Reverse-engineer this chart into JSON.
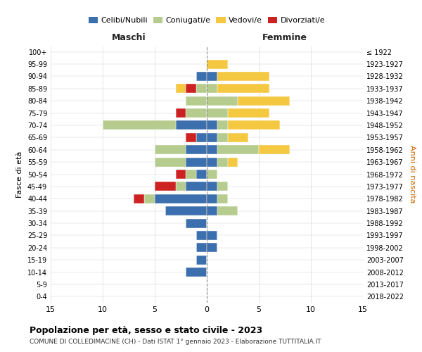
{
  "age_groups": [
    "0-4",
    "5-9",
    "10-14",
    "15-19",
    "20-24",
    "25-29",
    "30-34",
    "35-39",
    "40-44",
    "45-49",
    "50-54",
    "55-59",
    "60-64",
    "65-69",
    "70-74",
    "75-79",
    "80-84",
    "85-89",
    "90-94",
    "95-99",
    "100+"
  ],
  "birth_years": [
    "2018-2022",
    "2013-2017",
    "2008-2012",
    "2003-2007",
    "1998-2002",
    "1993-1997",
    "1988-1992",
    "1983-1987",
    "1978-1982",
    "1973-1977",
    "1968-1972",
    "1963-1967",
    "1958-1962",
    "1953-1957",
    "1948-1952",
    "1943-1947",
    "1938-1942",
    "1933-1937",
    "1928-1932",
    "1923-1927",
    "≤ 1922"
  ],
  "male": {
    "celibi": [
      0,
      0,
      2,
      1,
      1,
      1,
      2,
      4,
      5,
      2,
      1,
      2,
      2,
      1,
      3,
      0,
      0,
      0,
      1,
      0,
      0
    ],
    "coniugati": [
      0,
      0,
      0,
      0,
      0,
      0,
      0,
      0,
      1,
      1,
      1,
      3,
      3,
      0,
      7,
      2,
      2,
      1,
      0,
      0,
      0
    ],
    "vedovi": [
      0,
      0,
      0,
      0,
      0,
      0,
      0,
      0,
      0,
      0,
      0,
      0,
      0,
      0,
      0,
      0,
      0,
      1,
      0,
      0,
      0
    ],
    "divorziati": [
      0,
      0,
      0,
      0,
      0,
      0,
      0,
      0,
      1,
      2,
      1,
      0,
      0,
      1,
      0,
      1,
      0,
      1,
      0,
      0,
      0
    ]
  },
  "female": {
    "nubili": [
      0,
      0,
      0,
      0,
      1,
      1,
      0,
      1,
      1,
      1,
      0,
      1,
      1,
      1,
      1,
      0,
      0,
      0,
      1,
      0,
      0
    ],
    "coniugate": [
      0,
      0,
      0,
      0,
      0,
      0,
      0,
      2,
      1,
      1,
      1,
      1,
      4,
      1,
      1,
      2,
      3,
      1,
      0,
      0,
      0
    ],
    "vedove": [
      0,
      0,
      0,
      0,
      0,
      0,
      0,
      0,
      0,
      0,
      0,
      1,
      3,
      2,
      5,
      4,
      5,
      5,
      5,
      2,
      0
    ],
    "divorziate": [
      0,
      0,
      0,
      0,
      0,
      0,
      0,
      0,
      0,
      0,
      0,
      0,
      0,
      0,
      0,
      0,
      0,
      0,
      0,
      0,
      0
    ]
  },
  "colors": {
    "celibi": "#3c6fad",
    "coniugati": "#b5cc8e",
    "vedovi": "#f5c842",
    "divorziati": "#cc2222"
  },
  "xlim": 15,
  "title": "Popolazione per età, sesso e stato civile - 2023",
  "subtitle": "COMUNE DI COLLEDIMACINE (CH) - Dati ISTAT 1° gennaio 2023 - Elaborazione TUTTITALIA.IT",
  "ylabel_left": "Fasce di età",
  "ylabel_right": "Anni di nascita",
  "xlabel_left": "Maschi",
  "xlabel_right": "Femmine"
}
